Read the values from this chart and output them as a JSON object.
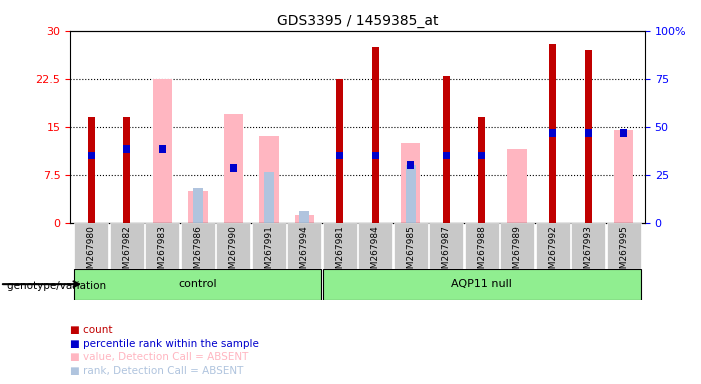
{
  "title": "GDS3395 / 1459385_at",
  "samples": [
    "GSM267980",
    "GSM267982",
    "GSM267983",
    "GSM267986",
    "GSM267990",
    "GSM267991",
    "GSM267994",
    "GSM267981",
    "GSM267984",
    "GSM267985",
    "GSM267987",
    "GSM267988",
    "GSM267989",
    "GSM267992",
    "GSM267993",
    "GSM267995"
  ],
  "groups": {
    "control": [
      "GSM267980",
      "GSM267982",
      "GSM267983",
      "GSM267986",
      "GSM267990",
      "GSM267991",
      "GSM267994"
    ],
    "AQP11 null": [
      "GSM267981",
      "GSM267984",
      "GSM267985",
      "GSM267987",
      "GSM267988",
      "GSM267989",
      "GSM267992",
      "GSM267993",
      "GSM267995"
    ]
  },
  "count": [
    16.5,
    16.5,
    0,
    0,
    0,
    0,
    0,
    22.5,
    27.5,
    0,
    23.0,
    16.5,
    0,
    28.0,
    27.0,
    0
  ],
  "percentile_rank": [
    10.5,
    11.5,
    11.5,
    0,
    8.5,
    0,
    0,
    10.5,
    10.5,
    9.0,
    10.5,
    10.5,
    0,
    14.0,
    14.0,
    14.0
  ],
  "value_absent": [
    0,
    0,
    22.5,
    5.0,
    17.0,
    13.5,
    1.2,
    0,
    0,
    12.5,
    0,
    0,
    11.5,
    0,
    0,
    14.5
  ],
  "rank_absent": [
    0,
    0,
    0,
    5.5,
    0,
    8.0,
    1.8,
    0,
    0,
    9.0,
    0,
    0,
    0,
    0,
    0,
    0
  ],
  "ylim_left": [
    0,
    30
  ],
  "ylim_right": [
    0,
    100
  ],
  "yticks_left": [
    0,
    7.5,
    15,
    22.5,
    30
  ],
  "yticks_right": [
    0,
    25,
    50,
    75,
    100
  ],
  "bar_color_count": "#C00000",
  "bar_color_rank": "#0000CC",
  "bar_color_value_absent": "#FFB6C1",
  "bar_color_rank_absent": "#B0C4DE",
  "group_color": "#90EE90",
  "bg_color": "#D3D3D3",
  "plot_bg": "#FFFFFF",
  "control_label": "control",
  "aqp11_label": "AQP11 null",
  "genotype_label": "genotype/variation"
}
